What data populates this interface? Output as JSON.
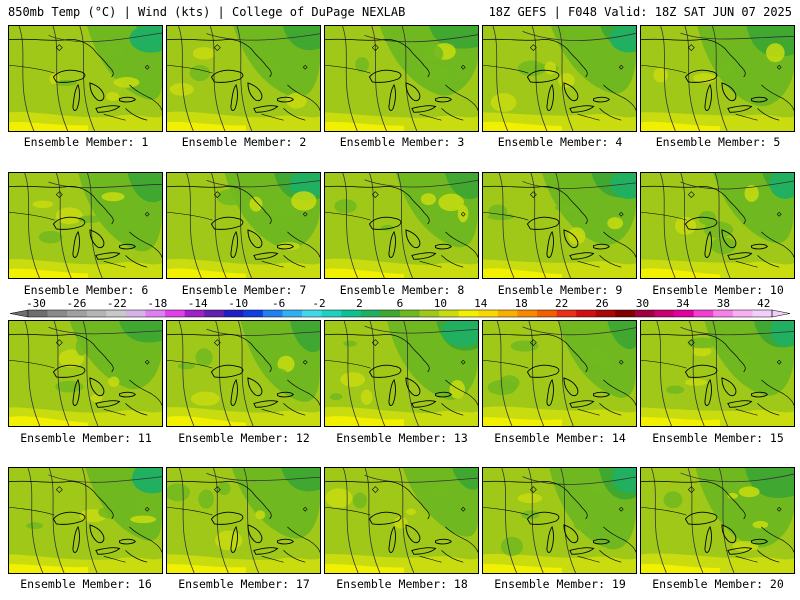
{
  "header": {
    "left": "850mb Temp (°C) | Wind (kts) | College of DuPage NEXLAB",
    "right": "18Z GEFS | F048 Valid: 18Z SAT JUN 07 2025"
  },
  "panels": [
    {
      "label": "Ensemble Member: 1"
    },
    {
      "label": "Ensemble Member: 2"
    },
    {
      "label": "Ensemble Member: 3"
    },
    {
      "label": "Ensemble Member: 4"
    },
    {
      "label": "Ensemble Member: 5"
    },
    {
      "label": "Ensemble Member: 6"
    },
    {
      "label": "Ensemble Member: 7"
    },
    {
      "label": "Ensemble Member: 8"
    },
    {
      "label": "Ensemble Member: 9"
    },
    {
      "label": "Ensemble Member: 10"
    },
    {
      "label": "Ensemble Member: 11"
    },
    {
      "label": "Ensemble Member: 12"
    },
    {
      "label": "Ensemble Member: 13"
    },
    {
      "label": "Ensemble Member: 14"
    },
    {
      "label": "Ensemble Member: 15"
    },
    {
      "label": "Ensemble Member: 16"
    },
    {
      "label": "Ensemble Member: 17"
    },
    {
      "label": "Ensemble Member: 18"
    },
    {
      "label": "Ensemble Member: 19"
    },
    {
      "label": "Ensemble Member: 20"
    }
  ],
  "colorbar": {
    "labels": [
      "-30",
      "-26",
      "-22",
      "-18",
      "-14",
      "-10",
      "-6",
      "-2",
      "2",
      "6",
      "10",
      "14",
      "18",
      "22",
      "26",
      "30",
      "34",
      "38",
      "42"
    ],
    "colors": [
      "#6e6e6e",
      "#8a8a8a",
      "#a0a0a0",
      "#b4b4b4",
      "#c8c8c8",
      "#d4b4e8",
      "#e080f0",
      "#e040e8",
      "#a020c8",
      "#6020b0",
      "#2020c0",
      "#1040e0",
      "#2080f0",
      "#30b0f0",
      "#40d8e8",
      "#20d0c0",
      "#10c090",
      "#20b060",
      "#40a830",
      "#70b820",
      "#a0c818",
      "#c8dc10",
      "#f0f000",
      "#f8d800",
      "#f8b000",
      "#f88800",
      "#f06000",
      "#e83018",
      "#d01010",
      "#a80808",
      "#800000",
      "#a00040",
      "#c80070",
      "#e000a0",
      "#f040d0",
      "#f880e8",
      "#f8b0f0",
      "#f0d0f8"
    ]
  }
}
